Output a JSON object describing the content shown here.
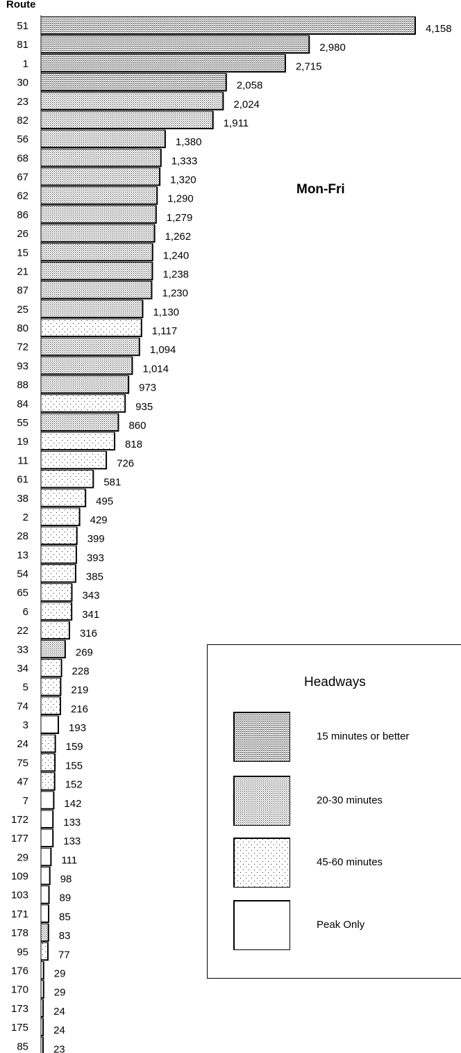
{
  "chart_data": {
    "type": "bar",
    "orientation": "horizontal",
    "title": "",
    "subtitle": "Mon-Fri",
    "ylabel": "Route",
    "xlabel": "",
    "xlim": [
      0,
      4158
    ],
    "grid": false,
    "legend_title": "Headways",
    "legend_placement": "bottom-right",
    "legend": [
      {
        "key": "15min",
        "label": "15 minutes or better"
      },
      {
        "key": "20-30",
        "label": "20-30 minutes"
      },
      {
        "key": "45-60",
        "label": "45-60 minutes"
      },
      {
        "key": "peak",
        "label": "Peak Only"
      }
    ],
    "categories": [
      "51",
      "81",
      "1",
      "30",
      "23",
      "82",
      "56",
      "68",
      "67",
      "62",
      "86",
      "26",
      "15",
      "21",
      "87",
      "25",
      "80",
      "72",
      "93",
      "88",
      "84",
      "55",
      "19",
      "11",
      "61",
      "38",
      "2",
      "28",
      "13",
      "54",
      "65",
      "6",
      "22",
      "33",
      "34",
      "5",
      "74",
      "3",
      "24",
      "75",
      "47",
      "7",
      "172",
      "177",
      "29",
      "109",
      "103",
      "171",
      "178",
      "95",
      "176",
      "170",
      "173",
      "175",
      "85"
    ],
    "values": [
      4158,
      2980,
      2715,
      2058,
      2024,
      1911,
      1380,
      1333,
      1320,
      1290,
      1279,
      1262,
      1240,
      1238,
      1230,
      1130,
      1117,
      1094,
      1014,
      973,
      935,
      860,
      818,
      726,
      581,
      495,
      429,
      399,
      393,
      385,
      343,
      341,
      316,
      269,
      228,
      219,
      216,
      193,
      159,
      155,
      152,
      142,
      133,
      133,
      111,
      98,
      89,
      85,
      83,
      77,
      29,
      29,
      24,
      24,
      23
    ],
    "value_labels": [
      "4,158",
      "2,980",
      "2,715",
      "2,058",
      "2,024",
      "1,911",
      "1,380",
      "1,333",
      "1,320",
      "1,290",
      "1,279",
      "1,262",
      "1,240",
      "1,238",
      "1,230",
      "1,130",
      "1,117",
      "1,094",
      "1,014",
      "973",
      "935",
      "860",
      "818",
      "726",
      "581",
      "495",
      "429",
      "399",
      "393",
      "385",
      "343",
      "341",
      "316",
      "269",
      "228",
      "219",
      "216",
      "193",
      "159",
      "155",
      "152",
      "142",
      "133",
      "133",
      "111",
      "98",
      "89",
      "85",
      "83",
      "77",
      "29",
      "29",
      "24",
      "24",
      "23"
    ],
    "headway": [
      "15min",
      "15min",
      "15min",
      "15min",
      "20-30",
      "20-30",
      "20-30",
      "20-30",
      "20-30",
      "20-30",
      "20-30",
      "20-30",
      "20-30",
      "20-30",
      "20-30",
      "20-30",
      "45-60",
      "20-30",
      "20-30",
      "20-30",
      "45-60",
      "20-30",
      "45-60",
      "45-60",
      "45-60",
      "45-60",
      "45-60",
      "45-60",
      "45-60",
      "45-60",
      "45-60",
      "45-60",
      "45-60",
      "20-30",
      "45-60",
      "45-60",
      "45-60",
      "peak",
      "45-60",
      "45-60",
      "45-60",
      "peak",
      "peak",
      "peak",
      "peak",
      "peak",
      "peak",
      "peak",
      "20-30",
      "45-60",
      "peak",
      "peak",
      "peak",
      "peak",
      "peak"
    ]
  }
}
